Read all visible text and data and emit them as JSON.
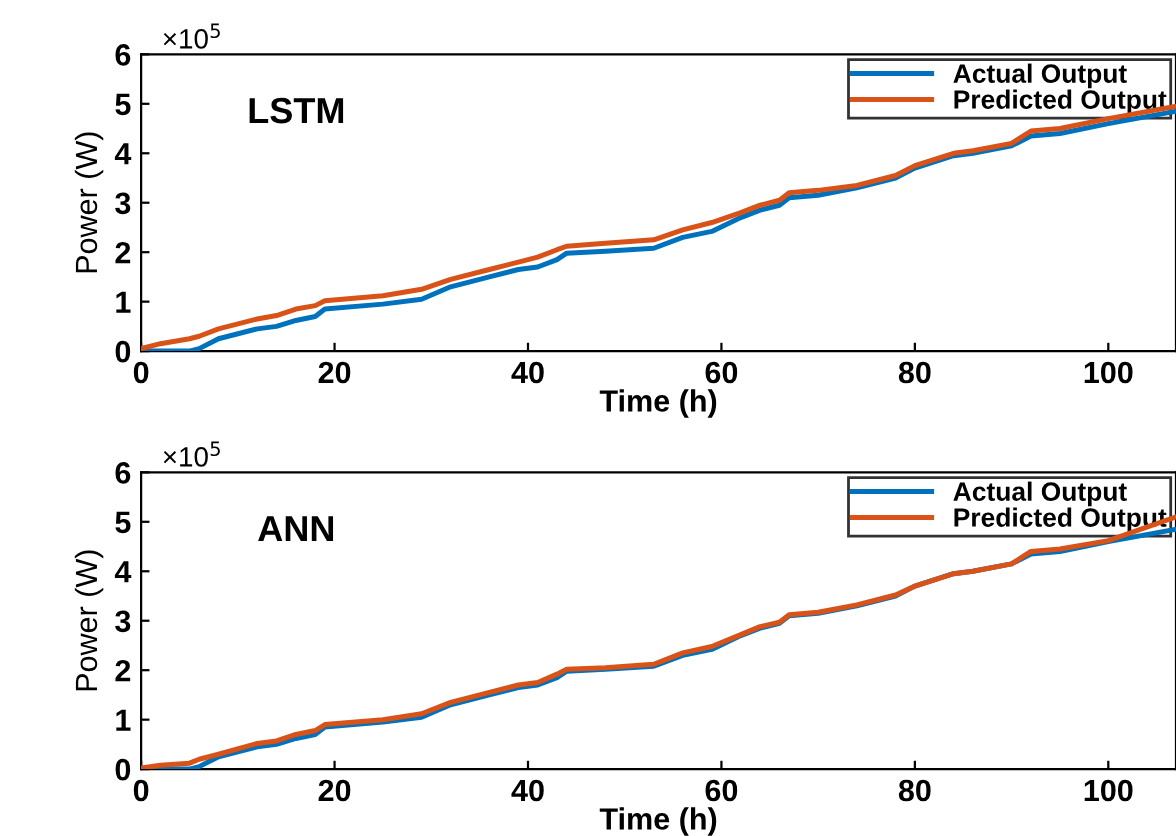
{
  "chart_data": [
    {
      "type": "line",
      "title": "LSTM",
      "xlabel": "Time (h)",
      "ylabel": "Power (W)",
      "annotations": [
        "×10$^{5}$"
      ],
      "legend": "top right",
      "grid": false,
      "xlim": [
        0,
        107
      ],
      "xticks": [
        0,
        20,
        40,
        60,
        80,
        100
      ],
      "ylim": [
        0,
        6
      ],
      "yticks": [
        0,
        1,
        2,
        3,
        4,
        5,
        6
      ],
      "x": [
        0,
        2,
        5,
        6,
        8,
        12,
        14,
        16,
        18,
        19,
        25,
        29,
        32,
        36,
        39,
        41,
        43,
        44,
        48,
        53,
        56,
        59,
        62,
        64,
        66,
        67,
        70,
        74,
        78,
        80,
        84,
        86,
        90,
        92,
        95,
        100,
        107
      ],
      "series": [
        {
          "name": "Actual Output",
          "color": "#0072bd",
          "values": [
            0,
            0,
            0,
            0.05,
            0.25,
            0.45,
            0.5,
            0.62,
            0.7,
            0.85,
            0.95,
            1.05,
            1.3,
            1.5,
            1.65,
            1.7,
            1.85,
            1.98,
            2.02,
            2.08,
            2.3,
            2.42,
            2.7,
            2.85,
            2.95,
            3.1,
            3.15,
            3.3,
            3.5,
            3.7,
            3.95,
            4.0,
            4.15,
            4.35,
            4.4,
            4.6,
            4.85
          ]
        },
        {
          "name": "Predicted Output",
          "color": "#d95319",
          "values": [
            0.05,
            0.15,
            0.25,
            0.3,
            0.45,
            0.65,
            0.72,
            0.85,
            0.92,
            1.02,
            1.12,
            1.25,
            1.45,
            1.65,
            1.8,
            1.9,
            2.05,
            2.12,
            2.18,
            2.25,
            2.45,
            2.6,
            2.8,
            2.95,
            3.05,
            3.2,
            3.25,
            3.35,
            3.55,
            3.75,
            4.0,
            4.05,
            4.2,
            4.45,
            4.5,
            4.7,
            4.95
          ]
        }
      ]
    },
    {
      "type": "line",
      "title": "ANN",
      "xlabel": "Time (h)",
      "ylabel": "Power (W)",
      "annotations": [
        "×10$^{5}$"
      ],
      "legend": "top right",
      "grid": false,
      "xlim": [
        0,
        107
      ],
      "xticks": [
        0,
        20,
        40,
        60,
        80,
        100
      ],
      "ylim": [
        0,
        6
      ],
      "yticks": [
        0,
        1,
        2,
        3,
        4,
        5,
        6
      ],
      "x": [
        0,
        2,
        5,
        6,
        8,
        12,
        14,
        16,
        18,
        19,
        25,
        29,
        32,
        36,
        39,
        41,
        43,
        44,
        48,
        53,
        56,
        59,
        62,
        64,
        66,
        67,
        70,
        74,
        78,
        80,
        84,
        86,
        90,
        92,
        95,
        100,
        107
      ],
      "series": [
        {
          "name": "Actual Output",
          "color": "#0072bd",
          "values": [
            0,
            0,
            0,
            0.05,
            0.25,
            0.45,
            0.5,
            0.62,
            0.7,
            0.85,
            0.95,
            1.05,
            1.3,
            1.5,
            1.65,
            1.7,
            1.85,
            1.98,
            2.02,
            2.08,
            2.3,
            2.42,
            2.7,
            2.85,
            2.95,
            3.1,
            3.15,
            3.3,
            3.5,
            3.7,
            3.95,
            4.0,
            4.15,
            4.35,
            4.4,
            4.6,
            4.85
          ]
        },
        {
          "name": "Predicted Output",
          "color": "#d95319",
          "values": [
            0.02,
            0.08,
            0.12,
            0.2,
            0.3,
            0.52,
            0.57,
            0.7,
            0.78,
            0.9,
            1.0,
            1.12,
            1.35,
            1.55,
            1.7,
            1.75,
            1.92,
            2.02,
            2.05,
            2.12,
            2.35,
            2.48,
            2.72,
            2.88,
            2.97,
            3.12,
            3.17,
            3.32,
            3.52,
            3.7,
            3.95,
            4.0,
            4.15,
            4.4,
            4.45,
            4.62,
            5.1
          ]
        }
      ]
    }
  ]
}
